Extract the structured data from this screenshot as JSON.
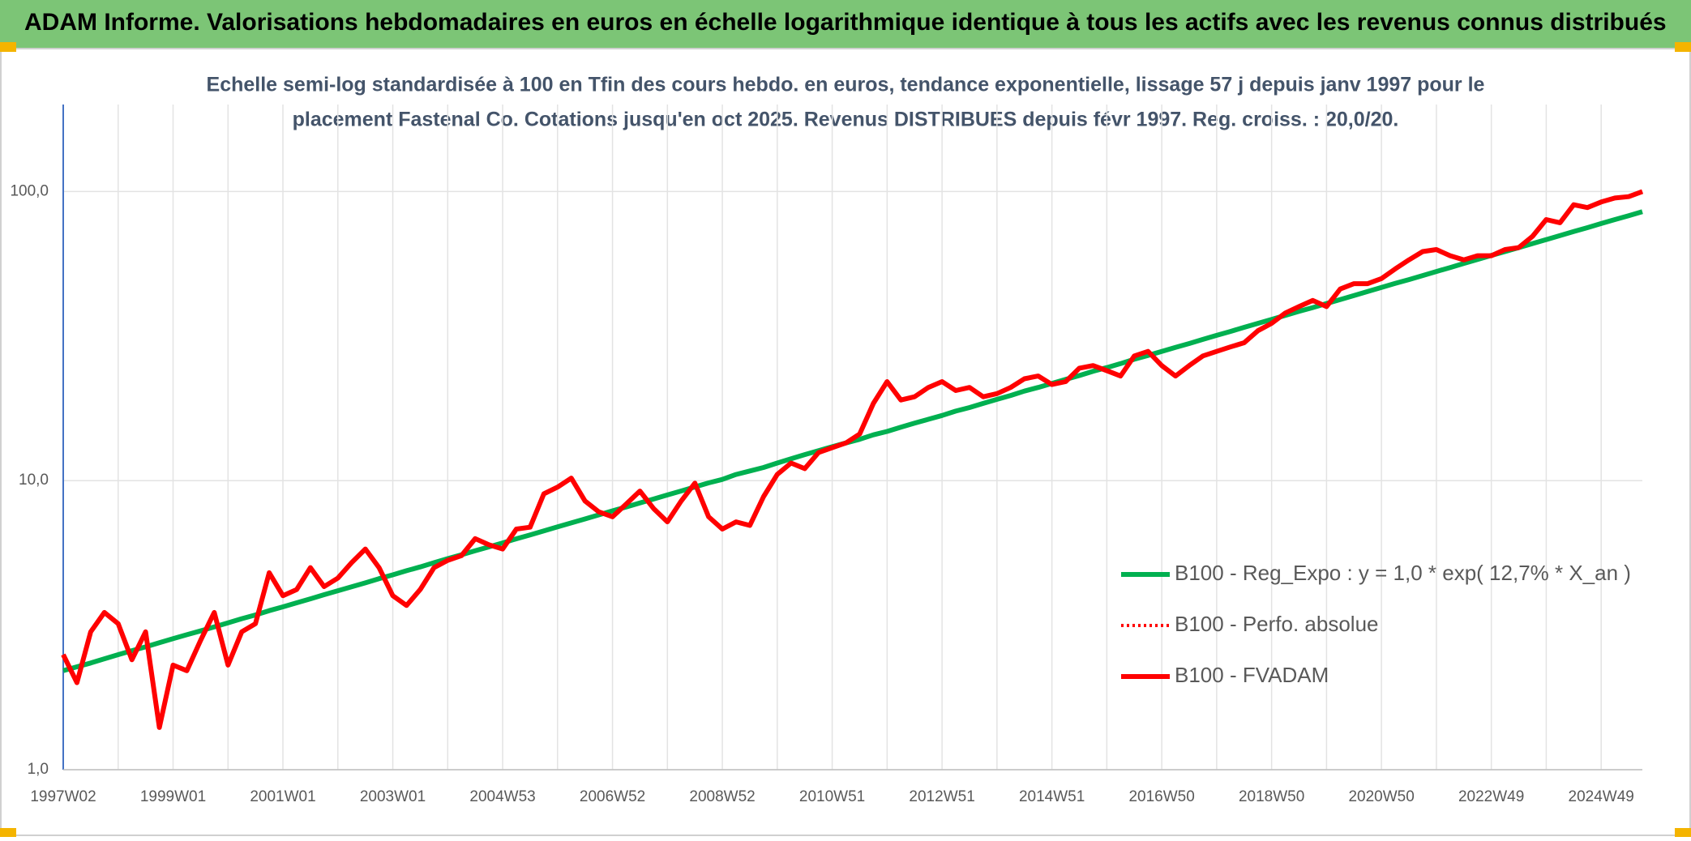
{
  "chart_data": {
    "type": "line",
    "title": "ADAM Informe. Valorisations hebdomadaires en euros en échelle logarithmique identique à tous les actifs avec les revenus connus distribués",
    "subtitle": [
      "Echelle semi-log standardisée à 100 en Tfin des cours hebdo. en euros, tendance exponentielle, lissage 57 j depuis janv 1997 pour le",
      "placement Fastenal Co. Cotations jusqu'en oct 2025. Revenus DISTRIBUES depuis févr 1997. Reg. croiss. : 20,0/20."
    ],
    "log_scale": true,
    "grid": true,
    "legend": "right",
    "ylim": [
      1,
      200
    ],
    "yticks": [
      {
        "value": 1,
        "label": "1,0"
      },
      {
        "value": 10,
        "label": "10,0"
      },
      {
        "value": 100,
        "label": "100,0"
      }
    ],
    "categories": [
      "1997W02",
      null,
      null,
      null,
      null,
      null,
      null,
      null,
      "1999W01",
      null,
      null,
      null,
      null,
      null,
      null,
      null,
      "2001W01",
      null,
      null,
      null,
      null,
      null,
      null,
      null,
      "2003W01",
      null,
      null,
      null,
      null,
      null,
      null,
      null,
      "2004W53",
      null,
      null,
      null,
      null,
      null,
      null,
      null,
      "2006W52",
      null,
      null,
      null,
      null,
      null,
      null,
      null,
      "2008W52",
      null,
      null,
      null,
      null,
      null,
      null,
      null,
      "2010W51",
      null,
      null,
      null,
      null,
      null,
      null,
      null,
      "2012W51",
      null,
      null,
      null,
      null,
      null,
      null,
      null,
      "2014W51",
      null,
      null,
      null,
      null,
      null,
      null,
      null,
      "2016W50",
      null,
      null,
      null,
      null,
      null,
      null,
      null,
      "2018W50",
      null,
      null,
      null,
      null,
      null,
      null,
      null,
      "2020W50",
      null,
      null,
      null,
      null,
      null,
      null,
      null,
      "2022W49",
      null,
      null,
      null,
      null,
      null,
      null,
      null,
      "2024W49",
      null,
      null,
      null
    ],
    "series": [
      {
        "name": "B100 - Reg_Expo : y = 1,0 * exp( 12,7% *  X_an )",
        "color": "#00b050",
        "style": "solid",
        "values": [
          2.2,
          2.27,
          2.34,
          2.42,
          2.5,
          2.58,
          2.66,
          2.75,
          2.84,
          2.93,
          3.02,
          3.12,
          3.22,
          3.33,
          3.43,
          3.55,
          3.66,
          3.78,
          3.9,
          4.03,
          4.16,
          4.29,
          4.43,
          4.58,
          4.72,
          4.88,
          5.03,
          5.2,
          5.37,
          5.54,
          5.72,
          5.9,
          6.09,
          6.29,
          6.49,
          6.7,
          6.92,
          7.14,
          7.37,
          7.61,
          7.86,
          8.11,
          8.37,
          8.64,
          8.92,
          9.21,
          9.51,
          9.82,
          10.1,
          10.5,
          10.8,
          11.1,
          11.5,
          11.9,
          12.3,
          12.7,
          13.1,
          13.5,
          13.9,
          14.4,
          14.8,
          15.3,
          15.8,
          16.3,
          16.8,
          17.4,
          17.9,
          18.5,
          19.1,
          19.7,
          20.4,
          21.0,
          21.7,
          22.4,
          23.1,
          23.9,
          24.6,
          25.4,
          26.3,
          27.1,
          28.0,
          28.9,
          29.8,
          30.8,
          31.8,
          32.8,
          33.9,
          35.0,
          36.1,
          37.3,
          38.5,
          39.7,
          41.0,
          42.3,
          43.7,
          45.1,
          46.6,
          48.1,
          49.6,
          51.2,
          52.9,
          54.6,
          56.4,
          58.2,
          60.1,
          62.0,
          64.0,
          66.1,
          68.2,
          70.4,
          72.7,
          75.0,
          77.5,
          80.0,
          82.5,
          85.2
        ]
      },
      {
        "name": "B100 - Perfo. absolue",
        "color": "#ff0000",
        "style": "dotted",
        "values": [
          2.5,
          2.0,
          3.0,
          3.5,
          3.2,
          2.4,
          3.0,
          1.4,
          2.3,
          2.2,
          2.8,
          3.5,
          2.3,
          3.0,
          3.2,
          4.8,
          4.0,
          4.2,
          5.0,
          4.3,
          4.6,
          5.2,
          5.8,
          5.0,
          4.0,
          3.7,
          4.2,
          5.0,
          5.3,
          5.5,
          6.3,
          6.0,
          5.8,
          6.8,
          6.9,
          9.0,
          9.5,
          10.2,
          8.5,
          7.8,
          7.5,
          8.3,
          9.2,
          8.0,
          7.2,
          8.5,
          9.8,
          7.5,
          6.8,
          7.2,
          7.0,
          8.8,
          10.5,
          11.5,
          11.0,
          12.5,
          13.0,
          13.5,
          14.5,
          18.5,
          22.0,
          19.0,
          19.5,
          21.0,
          22.0,
          20.5,
          21.0,
          19.5,
          20.0,
          21.0,
          22.5,
          23.0,
          21.5,
          22.0,
          24.5,
          25.0,
          24.0,
          23.0,
          27.0,
          28.0,
          25.0,
          23.0,
          25.0,
          27.0,
          28.0,
          29.0,
          30.0,
          33.0,
          35.0,
          38.0,
          40.0,
          42.0,
          40.0,
          46.0,
          48.0,
          48.0,
          50.0,
          54.0,
          58.0,
          62.0,
          63.0,
          60.0,
          58.0,
          60.0,
          60.0,
          63.0,
          64.0,
          70.0,
          80.0,
          78.0,
          90.0,
          88.0,
          92.0,
          95.0,
          96.0,
          100.0
        ]
      },
      {
        "name": "B100 - FVADAM",
        "color": "#ff0000",
        "style": "solid",
        "values": [
          2.5,
          2.0,
          3.0,
          3.5,
          3.2,
          2.4,
          3.0,
          1.4,
          2.3,
          2.2,
          2.8,
          3.5,
          2.3,
          3.0,
          3.2,
          4.8,
          4.0,
          4.2,
          5.0,
          4.3,
          4.6,
          5.2,
          5.8,
          5.0,
          4.0,
          3.7,
          4.2,
          5.0,
          5.3,
          5.5,
          6.3,
          6.0,
          5.8,
          6.8,
          6.9,
          9.0,
          9.5,
          10.2,
          8.5,
          7.8,
          7.5,
          8.3,
          9.2,
          8.0,
          7.2,
          8.5,
          9.8,
          7.5,
          6.8,
          7.2,
          7.0,
          8.8,
          10.5,
          11.5,
          11.0,
          12.5,
          13.0,
          13.5,
          14.5,
          18.5,
          22.0,
          19.0,
          19.5,
          21.0,
          22.0,
          20.5,
          21.0,
          19.5,
          20.0,
          21.0,
          22.5,
          23.0,
          21.5,
          22.0,
          24.5,
          25.0,
          24.0,
          23.0,
          27.0,
          28.0,
          25.0,
          23.0,
          25.0,
          27.0,
          28.0,
          29.0,
          30.0,
          33.0,
          35.0,
          38.0,
          40.0,
          42.0,
          40.0,
          46.0,
          48.0,
          48.0,
          50.0,
          54.0,
          58.0,
          62.0,
          63.0,
          60.0,
          58.0,
          60.0,
          60.0,
          63.0,
          64.0,
          70.0,
          80.0,
          78.0,
          90.0,
          88.0,
          92.0,
          95.0,
          96.0,
          100.0
        ]
      }
    ]
  }
}
